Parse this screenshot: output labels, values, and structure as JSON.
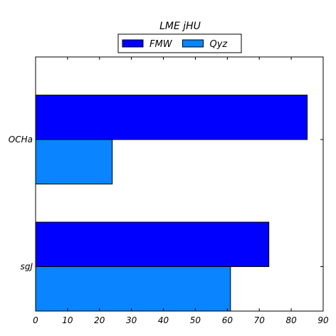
{
  "chart_data": {
    "type": "bar",
    "orientation": "horizontal",
    "title": "LME jHU",
    "xlabel": "",
    "ylabel": "",
    "categories": [
      "sgJ",
      "OCHa"
    ],
    "series": [
      {
        "name": "FMW",
        "values": [
          73,
          85
        ],
        "color": "#0000ff"
      },
      {
        "name": "Qyz",
        "values": [
          61,
          24
        ],
        "color": "#0a84ff"
      }
    ],
    "xlim": [
      0,
      90
    ],
    "xticks": [
      0,
      10,
      20,
      30,
      40,
      50,
      60,
      70,
      80,
      90
    ],
    "grid": false,
    "legend_position": "top-center"
  }
}
